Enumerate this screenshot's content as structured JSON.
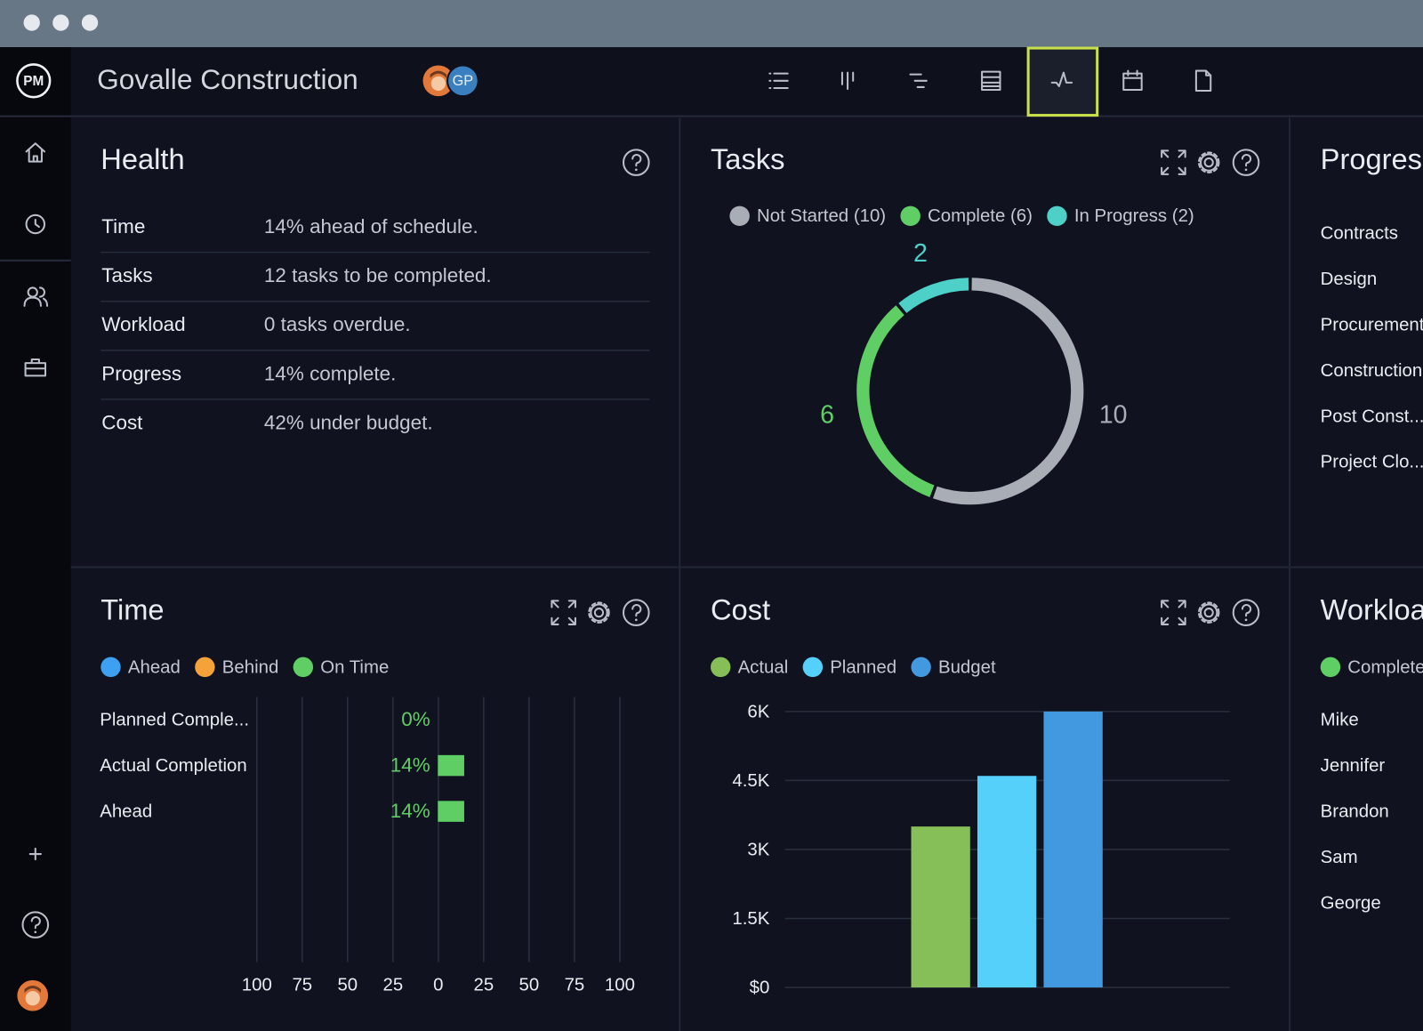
{
  "header": {
    "logo": "PM",
    "title": "Govalle Construction",
    "avatar": "GP"
  },
  "health": {
    "title": "Health",
    "rows": [
      [
        "Time",
        "14% ahead of schedule."
      ],
      [
        "Tasks",
        "12 tasks to be completed."
      ],
      [
        "Workload",
        "0 tasks overdue."
      ],
      [
        "Progress",
        "14% complete."
      ],
      [
        "Cost",
        "42% under budget."
      ]
    ]
  },
  "progress": {
    "title": "Progress",
    "items": [
      "Contracts",
      "Design",
      "Procurement",
      "Construction",
      "Post Const...",
      "Project Clo..."
    ]
  },
  "workload": {
    "title": "Workload",
    "legend": "Complete",
    "names": [
      "Mike",
      "Jennifer",
      "Brandon",
      "Sam",
      "George"
    ]
  },
  "chart_data": [
    {
      "type": "donut",
      "title": "Tasks",
      "categories": [
        "Not Started (10)",
        "Complete (6)",
        "In Progress (2)"
      ],
      "values": [
        10,
        6,
        2
      ],
      "colors": [
        "#a9adb6",
        "#5fcf65",
        "#4dd0c8"
      ]
    },
    {
      "type": "bar",
      "horizontal": true,
      "title": "Time",
      "legend": [
        {
          "name": "Ahead",
          "color": "#3ea0f0"
        },
        {
          "name": "Behind",
          "color": "#f5a23a"
        },
        {
          "name": "On Time",
          "color": "#5fcf65"
        }
      ],
      "categories": [
        "Planned Comple...",
        "Actual Completion",
        "Ahead"
      ],
      "values": [
        0,
        14,
        14
      ],
      "value_labels": [
        "0%",
        "14%",
        "14%"
      ],
      "color": "#5fcf65",
      "xlim": [
        -100,
        100
      ],
      "xticks": [
        {
          "value": -100,
          "label": "100"
        },
        {
          "value": -75,
          "label": "75"
        },
        {
          "value": -50,
          "label": "50"
        },
        {
          "value": -25,
          "label": "25"
        },
        0,
        25,
        50,
        75,
        100
      ],
      "grid": true
    },
    {
      "type": "bar",
      "title": "Cost",
      "series": [
        {
          "name": "Actual",
          "color": "#86be57",
          "values": [
            3500
          ]
        },
        {
          "name": "Planned",
          "color": "#55d0fa",
          "values": [
            4600
          ]
        },
        {
          "name": "Budget",
          "color": "#4399e0",
          "values": [
            6000
          ]
        }
      ],
      "ylim": [
        0,
        6000
      ],
      "yticks": [
        {
          "value": 0,
          "label": "$0"
        },
        {
          "value": 1500,
          "label": "1.5K"
        },
        {
          "value": 3000,
          "label": "3K"
        },
        {
          "value": 4500,
          "label": "4.5K"
        },
        {
          "value": 6000,
          "label": "6K"
        }
      ],
      "grid": true
    }
  ]
}
